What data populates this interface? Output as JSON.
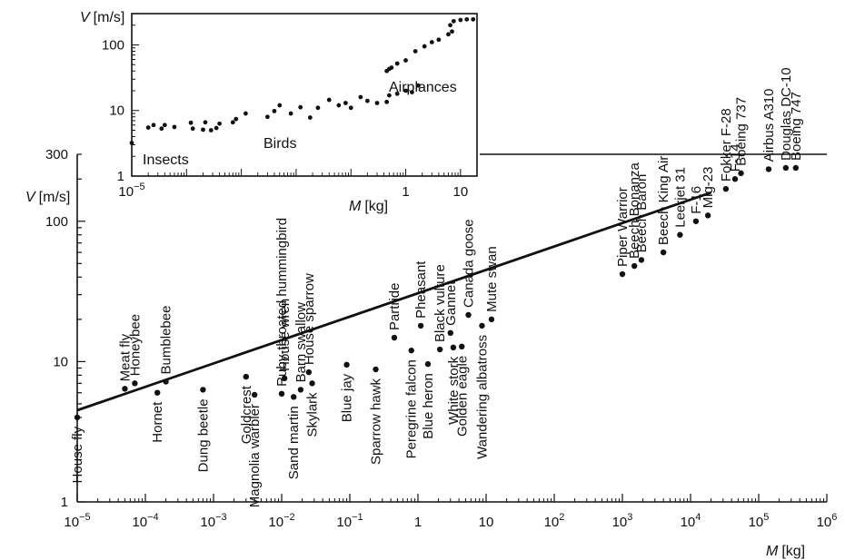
{
  "chart_data": [
    {
      "type": "scatter",
      "xlabel_var": "M",
      "xlabel_unit": "[kg]",
      "ylabel_var": "V",
      "ylabel_unit": "[m/s]",
      "xscale": "log",
      "yscale": "log",
      "xlim": [
        1e-05,
        1000000
      ],
      "ylim": [
        1,
        300
      ],
      "x_ticks": [
        {
          "base": "10",
          "exp": "−5"
        },
        {
          "base": "10",
          "exp": "−4"
        },
        {
          "base": "10",
          "exp": "−3"
        },
        {
          "base": "10",
          "exp": "−2"
        },
        {
          "base": "10",
          "exp": "−1"
        },
        {
          "base": "1",
          "exp": ""
        },
        {
          "base": "10",
          "exp": ""
        },
        {
          "base": "10",
          "exp": "2"
        },
        {
          "base": "10",
          "exp": "3"
        },
        {
          "base": "10",
          "exp": "4"
        },
        {
          "base": "10",
          "exp": "5"
        },
        {
          "base": "10",
          "exp": "6"
        }
      ],
      "y_ticks": [
        "1",
        "10",
        "100",
        "300"
      ],
      "trend_line": {
        "x": [
          1e-05,
          20000
        ],
        "y": [
          4.5,
          160
        ]
      },
      "points": [
        {
          "label": "House fly",
          "x": 1e-05,
          "y": 4.0
        },
        {
          "label": "Meat fly",
          "x": 5e-05,
          "y": 6.4
        },
        {
          "label": "Honeybee",
          "x": 7e-05,
          "y": 7.0
        },
        {
          "label": "Hornet",
          "x": 0.00015,
          "y": 6.0
        },
        {
          "label": "Bumblebee",
          "x": 0.0002,
          "y": 7.2
        },
        {
          "label": "Dung beetle",
          "x": 0.0007,
          "y": 6.3
        },
        {
          "label": "Goldcrest",
          "x": 0.003,
          "y": 7.8
        },
        {
          "label": "Magnolia warbler",
          "x": 0.004,
          "y": 5.8
        },
        {
          "label": "Ruby-throated hummingbird",
          "x": 0.01,
          "y": 5.9
        },
        {
          "label": "House wren",
          "x": 0.011,
          "y": 7.6
        },
        {
          "label": "Sand martin",
          "x": 0.015,
          "y": 5.6
        },
        {
          "label": "Barn swallow",
          "x": 0.019,
          "y": 6.3
        },
        {
          "label": "Skylark",
          "x": 0.028,
          "y": 7.0
        },
        {
          "label": "House sparrow",
          "x": 0.025,
          "y": 8.4
        },
        {
          "label": "Blue jay",
          "x": 0.09,
          "y": 9.5
        },
        {
          "label": "Sparrow hawk",
          "x": 0.24,
          "y": 8.8
        },
        {
          "label": "Partride",
          "x": 0.45,
          "y": 14.8
        },
        {
          "label": "Peregrine falcon",
          "x": 0.8,
          "y": 12.0
        },
        {
          "label": "Pheasant",
          "x": 1.1,
          "y": 18.0
        },
        {
          "label": "Blue heron",
          "x": 1.4,
          "y": 9.6
        },
        {
          "label": "Black vulture",
          "x": 2.1,
          "y": 12.2
        },
        {
          "label": "Gannet",
          "x": 3.0,
          "y": 16.0
        },
        {
          "label": "White stork",
          "x": 3.3,
          "y": 12.6
        },
        {
          "label": "Golden eagle",
          "x": 4.4,
          "y": 12.8
        },
        {
          "label": "Canada goose",
          "x": 5.5,
          "y": 21.5
        },
        {
          "label": "Wandering albatross",
          "x": 8.7,
          "y": 18.0
        },
        {
          "label": "Mute swan",
          "x": 12,
          "y": 20.0
        },
        {
          "label": "Piper Warrior",
          "x": 1000,
          "y": 42
        },
        {
          "label": "Beech Bonanza",
          "x": 1500,
          "y": 48
        },
        {
          "label": "Beech Baron",
          "x": 1900,
          "y": 53
        },
        {
          "label": "Beech King Air",
          "x": 4000,
          "y": 60
        },
        {
          "label": "Leerjet 31",
          "x": 7000,
          "y": 80
        },
        {
          "label": "F-16",
          "x": 12000,
          "y": 100
        },
        {
          "label": "Mig-23",
          "x": 18000,
          "y": 110
        },
        {
          "label": "Fokker F-28",
          "x": 33000,
          "y": 170
        },
        {
          "label": "F-14",
          "x": 45000,
          "y": 200
        },
        {
          "label": "Boeing 737",
          "x": 55000,
          "y": 220
        },
        {
          "label": "Airbus A310",
          "x": 140000,
          "y": 235
        },
        {
          "label": "Douglas DC-10",
          "x": 250000,
          "y": 240
        },
        {
          "label": "Boeing 747",
          "x": 350000,
          "y": 240
        }
      ]
    },
    {
      "type": "scatter",
      "xlabel_var": "M",
      "xlabel_unit": "[kg]",
      "ylabel_var": "V",
      "ylabel_unit": "[m/s]",
      "xscale": "log",
      "yscale": "log",
      "xlim": [
        1e-05,
        20
      ],
      "ylim": [
        1,
        300
      ],
      "x_ticks": [
        {
          "base": "10",
          "exp": "−5",
          "value": 1e-05
        },
        {
          "base": "1",
          "exp": "",
          "value": 1
        },
        {
          "base": "10",
          "exp": "",
          "value": 10
        }
      ],
      "y_ticks": [
        {
          "label": "1",
          "value": 1
        },
        {
          "label": "10",
          "value": 10
        },
        {
          "label": "100",
          "value": 100
        }
      ],
      "annotations": [
        "Insects",
        "Birds",
        "Airplances"
      ],
      "points": [
        {
          "x": 1e-05,
          "y": 3.2
        },
        {
          "x": 2e-05,
          "y": 5.5
        },
        {
          "x": 2.5e-05,
          "y": 6.0
        },
        {
          "x": 3.5e-05,
          "y": 5.3
        },
        {
          "x": 4e-05,
          "y": 6.0
        },
        {
          "x": 6e-05,
          "y": 5.6
        },
        {
          "x": 0.00012,
          "y": 6.5
        },
        {
          "x": 0.00013,
          "y": 5.3
        },
        {
          "x": 0.0002,
          "y": 5.1
        },
        {
          "x": 0.00022,
          "y": 6.6
        },
        {
          "x": 0.00028,
          "y": 5.0
        },
        {
          "x": 0.00035,
          "y": 5.4
        },
        {
          "x": 0.0004,
          "y": 6.3
        },
        {
          "x": 0.0007,
          "y": 6.6
        },
        {
          "x": 0.0008,
          "y": 7.4
        },
        {
          "x": 0.0012,
          "y": 9.0
        },
        {
          "x": 0.003,
          "y": 8.0
        },
        {
          "x": 0.004,
          "y": 9.8
        },
        {
          "x": 0.005,
          "y": 12.0
        },
        {
          "x": 0.008,
          "y": 9.0
        },
        {
          "x": 0.012,
          "y": 11.2
        },
        {
          "x": 0.018,
          "y": 7.8
        },
        {
          "x": 0.025,
          "y": 11.0
        },
        {
          "x": 0.04,
          "y": 14.5
        },
        {
          "x": 0.06,
          "y": 12.0
        },
        {
          "x": 0.08,
          "y": 13.0
        },
        {
          "x": 0.1,
          "y": 11.0
        },
        {
          "x": 0.15,
          "y": 16.0
        },
        {
          "x": 0.2,
          "y": 14.0
        },
        {
          "x": 0.3,
          "y": 13.0
        },
        {
          "x": 0.45,
          "y": 13.5
        },
        {
          "x": 0.5,
          "y": 17.0
        },
        {
          "x": 0.7,
          "y": 18.0
        },
        {
          "x": 1.0,
          "y": 20.0
        },
        {
          "x": 1.3,
          "y": 19.0
        },
        {
          "x": 1.7,
          "y": 24.0
        },
        {
          "x": 0.45,
          "y": 40.0
        },
        {
          "x": 0.5,
          "y": 43.0
        },
        {
          "x": 0.55,
          "y": 45.0
        },
        {
          "x": 0.7,
          "y": 52.0
        },
        {
          "x": 1.0,
          "y": 58.0
        },
        {
          "x": 1.5,
          "y": 80.0
        },
        {
          "x": 2.2,
          "y": 95.0
        },
        {
          "x": 3.0,
          "y": 110.0
        },
        {
          "x": 4.0,
          "y": 120.0
        },
        {
          "x": 6.0,
          "y": 145.0
        },
        {
          "x": 7.0,
          "y": 160.0
        },
        {
          "x": 6.5,
          "y": 200.0
        },
        {
          "x": 7.5,
          "y": 230.0
        },
        {
          "x": 10.0,
          "y": 240.0
        },
        {
          "x": 13.0,
          "y": 245.0
        },
        {
          "x": 17.0,
          "y": 245.0
        }
      ]
    }
  ]
}
